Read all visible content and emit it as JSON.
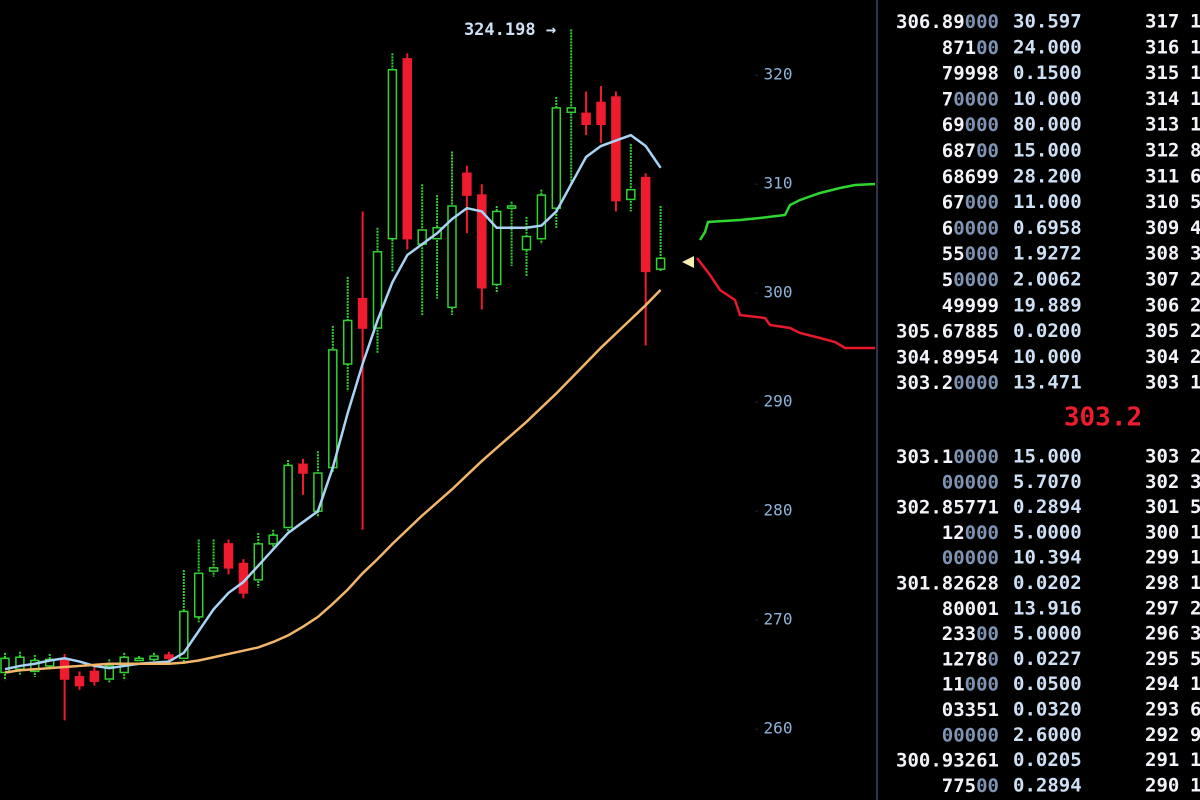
{
  "chart_data": {
    "type": "candlestick",
    "annotation": "324.198 →",
    "open": [
      265.2,
      265.5,
      265.3,
      265.8,
      266.4,
      264.8,
      265.3,
      264.6,
      265.2,
      266.3,
      266.4,
      266.8,
      266.5,
      270.3,
      274.5,
      277,
      275.2,
      273.7,
      277,
      278.5,
      284.3,
      280,
      284,
      293.5,
      299.5,
      296.8,
      305,
      321.5,
      304.5,
      305,
      298.7,
      311,
      309,
      300.8,
      307.8,
      304,
      305,
      307.8,
      316.6,
      316.5,
      317.5,
      318,
      308.6,
      310.6,
      302.2
    ],
    "high": [
      267,
      267.1,
      266.8,
      266.9,
      266.9,
      265.3,
      265.8,
      266.4,
      267,
      266.7,
      267,
      267.1,
      274.6,
      277.4,
      277.4,
      277.4,
      275.6,
      278,
      278.3,
      284.7,
      284.8,
      285.5,
      297,
      301.5,
      307.5,
      306,
      322,
      322,
      310,
      309,
      313,
      311.7,
      310,
      308,
      308.4,
      307,
      309.5,
      318,
      324.2,
      318.5,
      319,
      318.5,
      313.7,
      311,
      308
    ],
    "low": [
      264.5,
      265,
      264.8,
      265.5,
      260.8,
      263.6,
      264,
      264.2,
      264.5,
      266.2,
      266.2,
      266.3,
      266,
      269.8,
      274,
      274.2,
      272,
      273,
      276.5,
      278,
      281.5,
      279.5,
      283.5,
      291,
      278.3,
      294.5,
      302,
      304,
      298,
      299.5,
      298,
      305.5,
      298.5,
      300,
      302.5,
      301.5,
      304.5,
      306,
      310,
      314.5,
      313.8,
      307.5,
      307.5,
      295.2,
      302
    ],
    "close": [
      266.5,
      266.6,
      266.3,
      266.4,
      264.6,
      264,
      264.4,
      265.8,
      266.6,
      266.5,
      266.7,
      266.5,
      270.8,
      274.3,
      274.8,
      274.8,
      272.5,
      277,
      277.8,
      284.2,
      283.5,
      283.5,
      294.8,
      297.5,
      296.8,
      303.8,
      320.5,
      305,
      305.8,
      306,
      308,
      309,
      300.5,
      307.5,
      308,
      305.2,
      309,
      317,
      317,
      315.5,
      315.5,
      308.5,
      309.5,
      302,
      303.2
    ],
    "up_color": "#33d233",
    "down_color": "#ee1c2e",
    "series": [
      {
        "color": "#a9d4f5",
        "values": [
          265.5,
          265.8,
          266,
          266.3,
          266.5,
          266.2,
          265.8,
          265.6,
          265.8,
          266,
          266.1,
          266.2,
          267,
          269,
          271,
          272.5,
          273.5,
          275,
          276.5,
          278,
          279,
          280,
          284,
          289,
          293.5,
          297.5,
          301,
          303.5,
          304.5,
          305.5,
          306.8,
          307.8,
          307.5,
          306,
          306,
          306,
          306.2,
          307.5,
          310,
          312.5,
          313.5,
          314,
          314.5,
          313.5,
          311.5
        ]
      },
      {
        "color": "#f2b66b",
        "values": [
          265.2,
          265.4,
          265.5,
          265.6,
          265.7,
          265.8,
          265.9,
          266,
          266,
          266,
          266,
          266,
          266.1,
          266.3,
          266.6,
          266.9,
          267.2,
          267.5,
          268,
          268.6,
          269.4,
          270.3,
          271.5,
          272.8,
          274.3,
          275.6,
          277,
          278.3,
          279.6,
          280.8,
          282,
          283.3,
          284.6,
          285.8,
          287,
          288.2,
          289.5,
          290.8,
          292.2,
          293.6,
          295,
          296.3,
          297.6,
          298.9,
          300.3
        ]
      }
    ],
    "ylim": [
      253.5,
      326.9
    ],
    "yticks": [
      260,
      270,
      280,
      290,
      300,
      310,
      320
    ]
  },
  "order_book": {
    "asks": [
      [
        "306.89000",
        "30.597"
      ],
      [
        "87100",
        "24.000"
      ],
      [
        "79998",
        "0.1500"
      ],
      [
        "70000",
        "10.000"
      ],
      [
        "69000",
        "80.000"
      ],
      [
        "68700",
        "15.000"
      ],
      [
        "68699",
        "28.200"
      ],
      [
        "67000",
        "11.000"
      ],
      [
        "60000",
        "0.6958"
      ],
      [
        "55000",
        "1.9272"
      ],
      [
        "50000",
        "2.0062"
      ],
      [
        "49999",
        "19.889"
      ],
      [
        "305.67885",
        "0.0200"
      ],
      [
        "304.89954",
        "10.000"
      ],
      [
        "303.20000",
        "13.471"
      ]
    ],
    "mid": "303.2",
    "bids": [
      [
        "303.10000",
        "15.000"
      ],
      [
        "00000",
        "5.7070"
      ],
      [
        "302.85771",
        "0.2894"
      ],
      [
        "12000",
        "5.0000"
      ],
      [
        "00000",
        "10.394"
      ],
      [
        "301.82628",
        "0.0202"
      ],
      [
        "80001",
        "13.916"
      ],
      [
        "23300",
        "5.0000"
      ],
      [
        "12780",
        "0.0227"
      ],
      [
        "11000",
        "0.0500"
      ],
      [
        "03351",
        "0.0320"
      ],
      [
        "00000",
        "2.6000"
      ],
      [
        "300.93261",
        "0.0205"
      ],
      [
        "77500",
        "0.2894"
      ]
    ],
    "ladder_asks": [
      [
        "317",
        "1"
      ],
      [
        "316",
        "1"
      ],
      [
        "315",
        "1"
      ],
      [
        "314",
        "1"
      ],
      [
        "313",
        "1"
      ],
      [
        "312",
        "8"
      ],
      [
        "311",
        "6"
      ],
      [
        "310",
        "5"
      ],
      [
        "309",
        "4"
      ],
      [
        "308",
        "3"
      ],
      [
        "307",
        "2"
      ],
      [
        "306",
        "2"
      ],
      [
        "305",
        "2"
      ],
      [
        "304",
        "2"
      ],
      [
        "303",
        "1"
      ]
    ],
    "ladder_bids": [
      [
        "303",
        "2"
      ],
      [
        "302",
        "3"
      ],
      [
        "301",
        "5"
      ],
      [
        "300",
        "1"
      ],
      [
        "299",
        "1"
      ],
      [
        "298",
        "1"
      ],
      [
        "297",
        "2"
      ],
      [
        "296",
        "3"
      ],
      [
        "295",
        "5"
      ],
      [
        "294",
        "1"
      ],
      [
        "293",
        "6"
      ],
      [
        "292",
        "9"
      ],
      [
        "291",
        "1"
      ],
      [
        "290",
        "1"
      ]
    ]
  }
}
